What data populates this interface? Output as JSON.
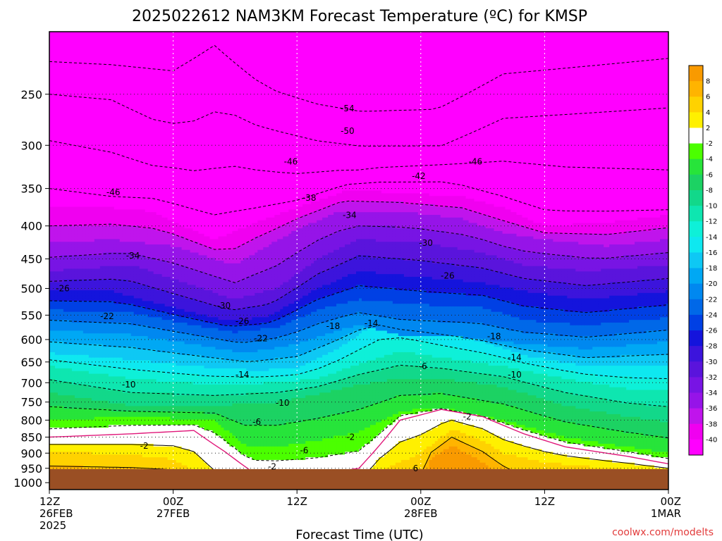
{
  "chart_data": {
    "type": "heatmap",
    "title": "2025022612 NAM3KM Forecast Temperature (ºC) for KMSP",
    "xlabel": "Forecast Time (UTC)",
    "ylabel": "",
    "x_ticks": [
      {
        "label": "12Z",
        "sub": "26FEB",
        "sub2": "2025"
      },
      {
        "label": "00Z",
        "sub": "27FEB",
        "sub2": ""
      },
      {
        "label": "12Z",
        "sub": "",
        "sub2": ""
      },
      {
        "label": "00Z",
        "sub": "28FEB",
        "sub2": ""
      },
      {
        "label": "12Z",
        "sub": "",
        "sub2": ""
      },
      {
        "label": "00Z",
        "sub": "1MAR",
        "sub2": ""
      }
    ],
    "y_ticks": [
      250,
      300,
      350,
      400,
      450,
      500,
      550,
      600,
      650,
      700,
      750,
      800,
      850,
      900,
      950,
      1000
    ],
    "y_unit": "hPa",
    "ylim": [
      1025,
      200
    ],
    "y_scale": "log-pressure",
    "grid": true,
    "colorbar": {
      "labels": [
        "8",
        "6",
        "4",
        "2",
        "-2",
        "-4",
        "-6",
        "-8",
        "-10",
        "-12",
        "-14",
        "-16",
        "-18",
        "-20",
        "-22",
        "-24",
        "-26",
        "-28",
        "-30",
        "-32",
        "-34",
        "-36",
        "-38",
        "-40"
      ],
      "colors": [
        "#f99a00",
        "#ffb400",
        "#ffd200",
        "#fff000",
        "#ffffff",
        "#4bff00",
        "#27e43a",
        "#1cd263",
        "#12d88a",
        "#0ee6b0",
        "#0ef0d8",
        "#0ee8f0",
        "#0ec8f4",
        "#00a8f4",
        "#0088f0",
        "#0068e8",
        "#0040e4",
        "#1414dc",
        "#3c14dc",
        "#5a14dc",
        "#7814e4",
        "#9614e8",
        "#c014ec",
        "#f000f0",
        "#ff00ff"
      ]
    },
    "contour_labels": [
      {
        "text": "-54",
        "t": 28.9,
        "p": 263
      },
      {
        "text": "-50",
        "t": 28.9,
        "p": 285
      },
      {
        "text": "-46",
        "t": 23.4,
        "p": 318
      },
      {
        "text": "-46",
        "t": 41.3,
        "p": 318
      },
      {
        "text": "-46",
        "t": 6.2,
        "p": 355
      },
      {
        "text": "-42",
        "t": 35.8,
        "p": 335
      },
      {
        "text": "-38",
        "t": 25.2,
        "p": 362
      },
      {
        "text": "-34",
        "t": 29.1,
        "p": 385
      },
      {
        "text": "-34",
        "t": 8.1,
        "p": 445
      },
      {
        "text": "-30",
        "t": 36.5,
        "p": 425
      },
      {
        "text": "-30",
        "t": 16.9,
        "p": 532
      },
      {
        "text": "-26",
        "t": 1.3,
        "p": 500
      },
      {
        "text": "-26",
        "t": 38.6,
        "p": 478
      },
      {
        "text": "-26",
        "t": 18.7,
        "p": 562
      },
      {
        "text": "-22",
        "t": 5.6,
        "p": 552
      },
      {
        "text": "-22",
        "t": 20.5,
        "p": 598
      },
      {
        "text": "-18",
        "t": 27.5,
        "p": 572
      },
      {
        "text": "-18",
        "t": 43.1,
        "p": 593
      },
      {
        "text": "-14",
        "t": 31.2,
        "p": 566
      },
      {
        "text": "-14",
        "t": 18.7,
        "p": 680
      },
      {
        "text": "-14",
        "t": 45.1,
        "p": 640
      },
      {
        "text": "-10",
        "t": 7.7,
        "p": 705
      },
      {
        "text": "-10",
        "t": 22.6,
        "p": 752
      },
      {
        "text": "-10",
        "t": 45.1,
        "p": 680
      },
      {
        "text": "-6",
        "t": 20.1,
        "p": 805
      },
      {
        "text": "-6",
        "t": 36.2,
        "p": 660
      },
      {
        "text": "-6",
        "t": 24.7,
        "p": 892
      },
      {
        "text": "-2",
        "t": 9.2,
        "p": 877
      },
      {
        "text": "-2",
        "t": 29.2,
        "p": 850
      },
      {
        "text": "-2",
        "t": 21.6,
        "p": 945
      },
      {
        "text": "-2",
        "t": 40.5,
        "p": 790
      },
      {
        "text": "6",
        "t": 35.5,
        "p": 951
      }
    ]
  },
  "footer": {
    "credit": "coolwx.com/modelts"
  }
}
